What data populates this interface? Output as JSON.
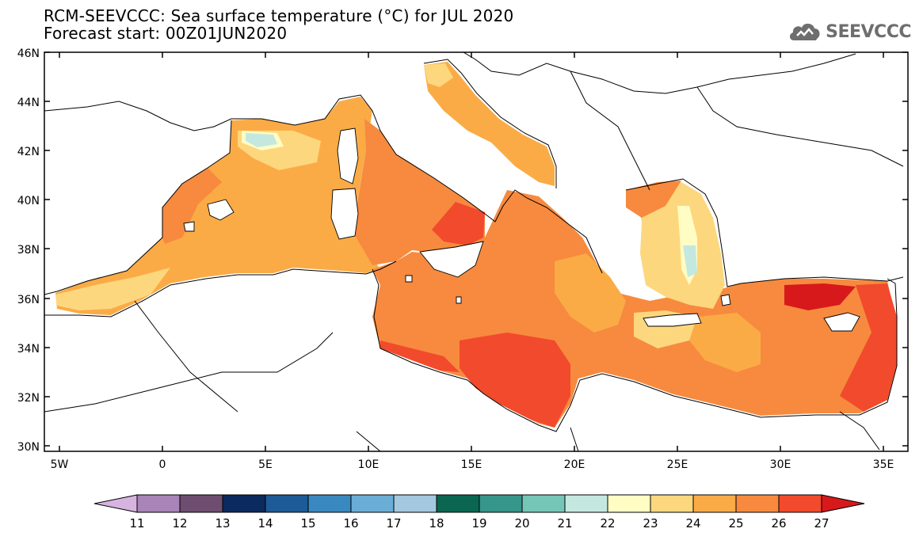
{
  "header": {
    "title_line1": "RCM-SEEVCCC: Sea surface temperature (°C) for JUL 2020",
    "title_line2": "Forecast start: 00Z01JUN2020",
    "logo_text": "SEEVCCC"
  },
  "map": {
    "lat_labels": [
      "46N",
      "44N",
      "42N",
      "40N",
      "38N",
      "36N",
      "34N",
      "32N",
      "30N"
    ],
    "lon_labels": [
      "5W",
      "0",
      "5E",
      "10E",
      "15E",
      "20E",
      "25E",
      "30E",
      "35E"
    ]
  },
  "colorbar": {
    "labels": [
      "11",
      "12",
      "13",
      "14",
      "15",
      "16",
      "17",
      "18",
      "19",
      "20",
      "21",
      "22",
      "23",
      "24",
      "25",
      "26",
      "27"
    ],
    "colors": [
      "#d7b4e0",
      "#a884b8",
      "#6e4e70",
      "#0b2a5e",
      "#1d5a98",
      "#3a88c0",
      "#6aaed6",
      "#a4c8df",
      "#0a6650",
      "#36968a",
      "#76c6b8",
      "#c4e8e0",
      "#fffcc4",
      "#fdd77e",
      "#fbab46",
      "#f78a3e",
      "#f24a2c",
      "#d7191c"
    ]
  },
  "colors": {
    "land_bg": "#ffffff",
    "coast": "#000000"
  }
}
